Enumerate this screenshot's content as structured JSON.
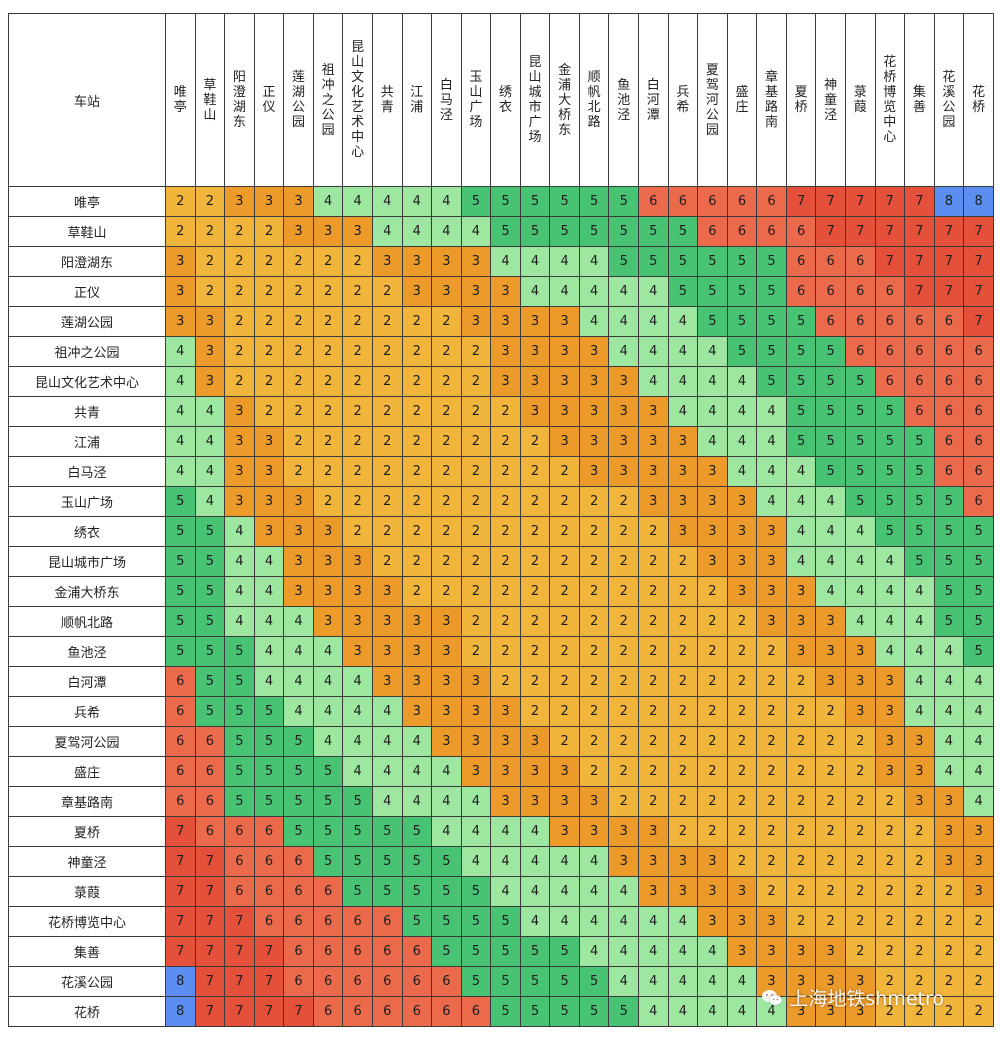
{
  "corner_label": "车站",
  "stations": [
    "唯亭",
    "草鞋山",
    "阳澄湖东",
    "正仪",
    "莲湖公园",
    "祖冲之公园",
    "昆山文化艺术中心",
    "共青",
    "江浦",
    "白马泾",
    "玉山广场",
    "绣衣",
    "昆山城市广场",
    "金浦大桥东",
    "顺帆北路",
    "鱼池泾",
    "白河潭",
    "兵希",
    "夏驾河公园",
    "盛庄",
    "章基路南",
    "夏桥",
    "神童泾",
    "菉葭",
    "花桥博览中心",
    "集善",
    "花溪公园",
    "花桥"
  ],
  "fares": [
    [
      2,
      2,
      3,
      3,
      3,
      4,
      4,
      4,
      4,
      4,
      5,
      5,
      5,
      5,
      5,
      5,
      6,
      6,
      6,
      6,
      6,
      7,
      7,
      7,
      7,
      7,
      8,
      8
    ],
    [
      2,
      2,
      2,
      2,
      3,
      3,
      3,
      4,
      4,
      4,
      4,
      5,
      5,
      5,
      5,
      5,
      5,
      5,
      6,
      6,
      6,
      6,
      7,
      7,
      7,
      7,
      7,
      7
    ],
    [
      3,
      2,
      2,
      2,
      2,
      2,
      2,
      3,
      3,
      3,
      3,
      4,
      4,
      4,
      4,
      5,
      5,
      5,
      5,
      5,
      5,
      6,
      6,
      6,
      7,
      7,
      7,
      7
    ],
    [
      3,
      2,
      2,
      2,
      2,
      2,
      2,
      2,
      3,
      3,
      3,
      3,
      4,
      4,
      4,
      4,
      4,
      5,
      5,
      5,
      5,
      6,
      6,
      6,
      6,
      7,
      7,
      7
    ],
    [
      3,
      3,
      2,
      2,
      2,
      2,
      2,
      2,
      2,
      2,
      3,
      3,
      3,
      3,
      4,
      4,
      4,
      4,
      5,
      5,
      5,
      5,
      6,
      6,
      6,
      6,
      6,
      7
    ],
    [
      4,
      3,
      2,
      2,
      2,
      2,
      2,
      2,
      2,
      2,
      2,
      3,
      3,
      3,
      3,
      4,
      4,
      4,
      4,
      5,
      5,
      5,
      5,
      6,
      6,
      6,
      6,
      6
    ],
    [
      4,
      3,
      2,
      2,
      2,
      2,
      2,
      2,
      2,
      2,
      2,
      3,
      3,
      3,
      3,
      3,
      4,
      4,
      4,
      4,
      5,
      5,
      5,
      5,
      6,
      6,
      6,
      6
    ],
    [
      4,
      4,
      3,
      2,
      2,
      2,
      2,
      2,
      2,
      2,
      2,
      2,
      3,
      3,
      3,
      3,
      3,
      4,
      4,
      4,
      4,
      5,
      5,
      5,
      5,
      6,
      6,
      6
    ],
    [
      4,
      4,
      3,
      3,
      2,
      2,
      2,
      2,
      2,
      2,
      2,
      2,
      2,
      3,
      3,
      3,
      3,
      3,
      4,
      4,
      4,
      5,
      5,
      5,
      5,
      5,
      6,
      6
    ],
    [
      4,
      4,
      3,
      3,
      2,
      2,
      2,
      2,
      2,
      2,
      2,
      2,
      2,
      2,
      3,
      3,
      3,
      3,
      3,
      4,
      4,
      4,
      5,
      5,
      5,
      5,
      6,
      6
    ],
    [
      5,
      4,
      3,
      3,
      3,
      2,
      2,
      2,
      2,
      2,
      2,
      2,
      2,
      2,
      2,
      2,
      3,
      3,
      3,
      3,
      4,
      4,
      4,
      5,
      5,
      5,
      5,
      6
    ],
    [
      5,
      5,
      4,
      3,
      3,
      3,
      2,
      2,
      2,
      2,
      2,
      2,
      2,
      2,
      2,
      2,
      2,
      3,
      3,
      3,
      3,
      4,
      4,
      4,
      5,
      5,
      5,
      5
    ],
    [
      5,
      5,
      4,
      4,
      3,
      3,
      3,
      2,
      2,
      2,
      2,
      2,
      2,
      2,
      2,
      2,
      2,
      2,
      3,
      3,
      3,
      4,
      4,
      4,
      4,
      5,
      5,
      5
    ],
    [
      5,
      5,
      4,
      4,
      3,
      3,
      3,
      3,
      2,
      2,
      2,
      2,
      2,
      2,
      2,
      2,
      2,
      2,
      2,
      3,
      3,
      3,
      4,
      4,
      4,
      4,
      5,
      5
    ],
    [
      5,
      5,
      4,
      4,
      4,
      3,
      3,
      3,
      3,
      3,
      2,
      2,
      2,
      2,
      2,
      2,
      2,
      2,
      2,
      2,
      3,
      3,
      3,
      4,
      4,
      4,
      5,
      5
    ],
    [
      5,
      5,
      5,
      4,
      4,
      4,
      3,
      3,
      3,
      3,
      2,
      2,
      2,
      2,
      2,
      2,
      2,
      2,
      2,
      2,
      2,
      3,
      3,
      3,
      4,
      4,
      4,
      5
    ],
    [
      6,
      5,
      5,
      4,
      4,
      4,
      4,
      3,
      3,
      3,
      3,
      2,
      2,
      2,
      2,
      2,
      2,
      2,
      2,
      2,
      2,
      2,
      3,
      3,
      3,
      4,
      4,
      4
    ],
    [
      6,
      5,
      5,
      5,
      4,
      4,
      4,
      4,
      3,
      3,
      3,
      3,
      2,
      2,
      2,
      2,
      2,
      2,
      2,
      2,
      2,
      2,
      2,
      3,
      3,
      4,
      4,
      4
    ],
    [
      6,
      6,
      5,
      5,
      5,
      4,
      4,
      4,
      4,
      3,
      3,
      3,
      3,
      2,
      2,
      2,
      2,
      2,
      2,
      2,
      2,
      2,
      2,
      2,
      3,
      3,
      4,
      4
    ],
    [
      6,
      6,
      5,
      5,
      5,
      5,
      4,
      4,
      4,
      4,
      3,
      3,
      3,
      3,
      2,
      2,
      2,
      2,
      2,
      2,
      2,
      2,
      2,
      2,
      3,
      3,
      4,
      4
    ],
    [
      6,
      6,
      5,
      5,
      5,
      5,
      5,
      4,
      4,
      4,
      4,
      3,
      3,
      3,
      3,
      2,
      2,
      2,
      2,
      2,
      2,
      2,
      2,
      2,
      2,
      3,
      3,
      4
    ],
    [
      7,
      6,
      6,
      6,
      5,
      5,
      5,
      5,
      5,
      4,
      4,
      4,
      4,
      3,
      3,
      3,
      3,
      2,
      2,
      2,
      2,
      2,
      2,
      2,
      2,
      2,
      3,
      3
    ],
    [
      7,
      7,
      6,
      6,
      6,
      5,
      5,
      5,
      5,
      5,
      4,
      4,
      4,
      4,
      4,
      3,
      3,
      3,
      3,
      2,
      2,
      2,
      2,
      2,
      2,
      2,
      3,
      3
    ],
    [
      7,
      7,
      6,
      6,
      6,
      6,
      5,
      5,
      5,
      5,
      5,
      4,
      4,
      4,
      4,
      4,
      3,
      3,
      3,
      3,
      2,
      2,
      2,
      2,
      2,
      2,
      2,
      3
    ],
    [
      7,
      7,
      7,
      6,
      6,
      6,
      6,
      6,
      5,
      5,
      5,
      5,
      4,
      4,
      4,
      4,
      4,
      4,
      3,
      3,
      3,
      2,
      2,
      2,
      2,
      2,
      2,
      2
    ],
    [
      7,
      7,
      7,
      7,
      6,
      6,
      6,
      6,
      6,
      5,
      5,
      5,
      5,
      5,
      4,
      4,
      4,
      4,
      4,
      3,
      3,
      3,
      3,
      2,
      2,
      2,
      2,
      2
    ],
    [
      8,
      7,
      7,
      7,
      6,
      6,
      6,
      6,
      6,
      6,
      5,
      5,
      5,
      5,
      5,
      4,
      4,
      4,
      4,
      4,
      3,
      3,
      3,
      3,
      2,
      2,
      2,
      2
    ],
    [
      8,
      7,
      7,
      7,
      7,
      6,
      6,
      6,
      6,
      6,
      6,
      5,
      5,
      5,
      5,
      5,
      4,
      4,
      4,
      4,
      4,
      3,
      3,
      3,
      2,
      2,
      2,
      2
    ]
  ],
  "fare_colors": {
    "2": "#f2b53c",
    "3": "#ec9a2a",
    "4": "#9ee7a0",
    "5": "#48c374",
    "6": "#ec6a4c",
    "7": "#e5503a",
    "8": "#5b8ef0"
  },
  "watermark": {
    "icon": "wechat-icon",
    "text": "上海地铁shmetro"
  }
}
